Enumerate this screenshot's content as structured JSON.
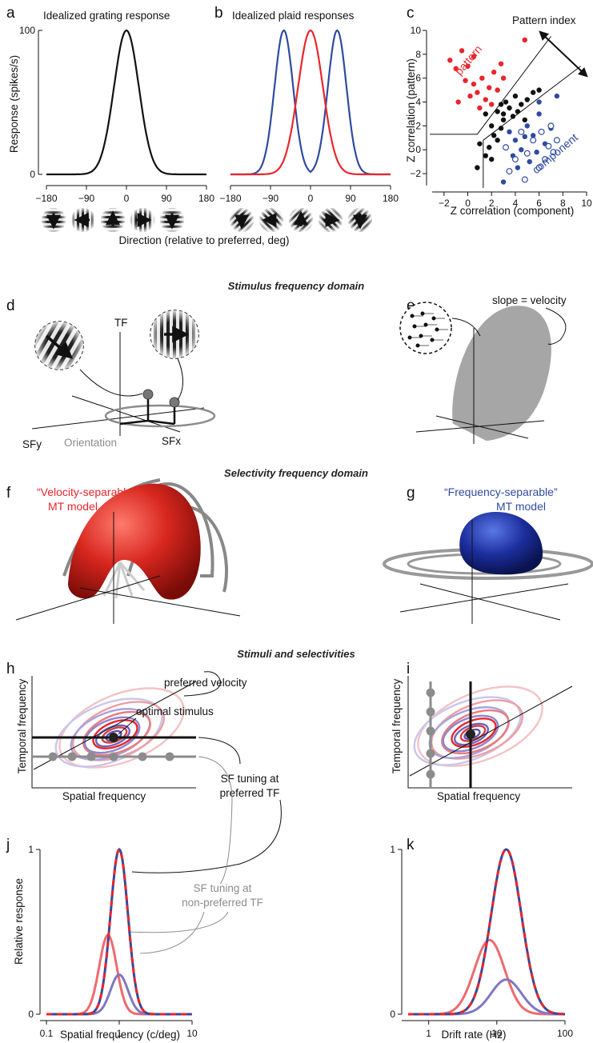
{
  "panel_labels": {
    "a": "a",
    "b": "b",
    "c": "c",
    "d": "d",
    "e": "e",
    "f": "f",
    "g": "g",
    "h": "h",
    "i": "i",
    "j": "j",
    "k": "k"
  },
  "sections": {
    "stimulus_domain": "Stimulus frequency domain",
    "selectivity_domain": "Selectivity frequency domain",
    "stimuli_selectivities": "Stimuli and selectivities"
  },
  "panel_a": {
    "title": "Idealized grating response",
    "ylabel": "Response (spikes/s)",
    "yticks": [
      "0",
      "100"
    ],
    "xticks": [
      "−180",
      "−90",
      "0",
      "90",
      "180"
    ]
  },
  "panel_b": {
    "title": "Idealized plaid responses",
    "xticks": [
      "−180",
      "−90",
      "0",
      "90",
      "180"
    ]
  },
  "shared_ab": {
    "xlabel": "Direction (relative to preferred, deg)"
  },
  "panel_c": {
    "ylabel": "Z correlation (pattern)",
    "xlabel": "Z correlation (component)",
    "yticks": [
      "10",
      "8",
      "6",
      "4",
      "2",
      "0",
      "−2"
    ],
    "xticks": [
      "−2",
      "0",
      "2",
      "4",
      "6",
      "8",
      "10"
    ],
    "arrow_label": "Pattern index",
    "pattern_label": "pattern",
    "component_label": "component"
  },
  "panel_d": {
    "tf_label": "TF",
    "sfy_label": "SFy",
    "sfx_label": "SFx",
    "orientation_label": "Orientation"
  },
  "panel_e": {
    "slope_label": "slope = velocity"
  },
  "panel_f": {
    "model_line1": "“Velocity-separable”",
    "model_line2": "MT model"
  },
  "panel_g": {
    "model_line1": "“Frequency-separable”",
    "model_line2": "MT model"
  },
  "panel_h": {
    "ylabel": "Temporal frequency",
    "xlabel": "Spatial frequency",
    "pref_velocity": "preferred velocity",
    "optimal_stimulus": "optimal stimulus",
    "sf_pref_line1": "SF tuning at",
    "sf_pref_line2": "preferred TF",
    "sf_nonpref_line1": "SF tuning at",
    "sf_nonpref_line2": "non-preferred TF"
  },
  "panel_i": {
    "ylabel": "Temporal frequency",
    "xlabel": "Spatial frequency"
  },
  "panel_j": {
    "ylabel": "Relative response",
    "xlabel": "Spatial frequency (c/deg)",
    "yticks": [
      "0",
      "1"
    ],
    "xticks": [
      "0.1",
      "1",
      "10"
    ]
  },
  "panel_k": {
    "xlabel": "Drift rate (Hz)",
    "yticks": [
      "0",
      "1"
    ],
    "xticks": [
      "1",
      "10",
      "100"
    ]
  },
  "colors": {
    "red": "#e8262b",
    "blue": "#2f4ba0",
    "light_red": "#ee6a6e",
    "light_blue": "#7f78c0",
    "gray": "#8c8c8c"
  },
  "chart_data": [
    {
      "id": "a",
      "type": "line",
      "x_range": [
        -180,
        180
      ],
      "ylim": [
        0,
        100
      ],
      "series": [
        {
          "color": "#111111",
          "kind": "gaussian",
          "mu": 0,
          "sigma": 28,
          "amp": 100
        }
      ]
    },
    {
      "id": "b",
      "type": "line",
      "x_range": [
        -180,
        180
      ],
      "ylim": [
        0,
        100
      ],
      "series": [
        {
          "color": "#2f4ba0",
          "kind": "two-gaussian",
          "mu": [
            -60,
            60
          ],
          "sigma": 21,
          "amp": 100
        },
        {
          "color": "#e8262b",
          "kind": "gaussian",
          "mu": 0,
          "sigma": 28,
          "amp": 100
        }
      ]
    },
    {
      "id": "c",
      "type": "scatter",
      "xlim": [
        -3,
        10
      ],
      "ylim": [
        -3,
        10
      ],
      "pattern_points": [
        [
          -1.5,
          7.5
        ],
        [
          -1,
          6.8
        ],
        [
          -0.5,
          8.3
        ],
        [
          0,
          7
        ],
        [
          0.5,
          7.8
        ],
        [
          0.2,
          4.5
        ],
        [
          0.8,
          4.8
        ],
        [
          1.2,
          6
        ],
        [
          1.8,
          5.2
        ],
        [
          2.2,
          6.5
        ],
        [
          2.8,
          7.2
        ],
        [
          3,
          6
        ],
        [
          0.5,
          5.5
        ],
        [
          -0.2,
          5.8
        ],
        [
          1,
          3.5
        ],
        [
          1.5,
          4.2
        ],
        [
          2.5,
          5
        ],
        [
          4.8,
          9.2
        ],
        [
          -0.8,
          4
        ],
        [
          2,
          3.8
        ]
      ],
      "mixed_points": [
        [
          1.5,
          3
        ],
        [
          2,
          2
        ],
        [
          2.5,
          3.2
        ],
        [
          3,
          2.5
        ],
        [
          3.2,
          4
        ],
        [
          2.2,
          1.2
        ],
        [
          1.8,
          0.2
        ],
        [
          2.8,
          1.8
        ],
        [
          3.5,
          3.5
        ],
        [
          4,
          4.5
        ],
        [
          4.5,
          3.8
        ],
        [
          5,
          4.2
        ],
        [
          1,
          0.5
        ],
        [
          2.5,
          0.8
        ],
        [
          3.8,
          2.8
        ],
        [
          1.5,
          -0.5
        ],
        [
          0.8,
          -1.5
        ],
        [
          2,
          -0.8
        ],
        [
          4.8,
          2.5
        ],
        [
          5.5,
          4.8
        ],
        [
          6,
          5
        ],
        [
          3,
          3
        ],
        [
          2.8,
          3.8
        ],
        [
          4.2,
          3.2
        ]
      ],
      "component_points": [
        [
          3.5,
          1.5
        ],
        [
          4,
          0.8
        ],
        [
          4.5,
          0
        ],
        [
          5,
          2
        ],
        [
          5.5,
          1.2
        ],
        [
          6,
          3
        ],
        [
          6.5,
          0.5
        ],
        [
          7,
          1.8
        ],
        [
          5.2,
          -1
        ],
        [
          4.2,
          -1.5
        ],
        [
          3,
          -2.7
        ],
        [
          6,
          4
        ],
        [
          7.5,
          4.5
        ],
        [
          3.8,
          -0.5
        ],
        [
          5.8,
          -0.2
        ],
        [
          4.8,
          1.1
        ]
      ],
      "component_open_points": [
        [
          3.2,
          0.2
        ],
        [
          4,
          -0.8
        ],
        [
          4.5,
          1.5
        ],
        [
          5,
          -0.3
        ],
        [
          6.2,
          1.5
        ],
        [
          6.8,
          0.3
        ],
        [
          7.2,
          -0.2
        ],
        [
          7.5,
          0.8
        ],
        [
          6,
          -1.5
        ],
        [
          4.8,
          -2.5
        ],
        [
          3.5,
          -1.8
        ],
        [
          5.5,
          0.8
        ],
        [
          6.5,
          -0.8
        ],
        [
          7,
          2
        ]
      ]
    },
    {
      "id": "j",
      "type": "line",
      "xscale": "log",
      "x_range": [
        0.1,
        10
      ],
      "ylim": [
        0,
        1
      ],
      "series": [
        {
          "color": "#2f4ba0",
          "kind": "lognormal",
          "mu": 1,
          "sigma_dec": 0.12,
          "amp": 1
        },
        {
          "color": "#e8262b",
          "kind": "lognormal",
          "mu": 1,
          "sigma_dec": 0.12,
          "amp": 1,
          "dashed": true
        },
        {
          "color": "#ee6a6e",
          "kind": "lognormal",
          "mu": 0.7,
          "sigma_dec": 0.12,
          "amp": 0.48
        },
        {
          "color": "#7f78c0",
          "kind": "lognormal",
          "mu": 1,
          "sigma_dec": 0.12,
          "amp": 0.24
        }
      ]
    },
    {
      "id": "k",
      "type": "line",
      "xscale": "log",
      "x_range": [
        0.5,
        60
      ],
      "ylim": [
        0,
        1
      ],
      "series": [
        {
          "color": "#2f4ba0",
          "kind": "lognormal",
          "mu": 10,
          "sigma_dec": 0.2,
          "amp": 1
        },
        {
          "color": "#e8262b",
          "kind": "lognormal",
          "mu": 10,
          "sigma_dec": 0.2,
          "amp": 1,
          "dashed": true
        },
        {
          "color": "#ee6a6e",
          "kind": "lognormal",
          "mu": 6,
          "sigma_dec": 0.2,
          "amp": 0.45
        },
        {
          "color": "#7f78c0",
          "kind": "lognormal",
          "mu": 10,
          "sigma_dec": 0.2,
          "amp": 0.21
        }
      ]
    }
  ]
}
